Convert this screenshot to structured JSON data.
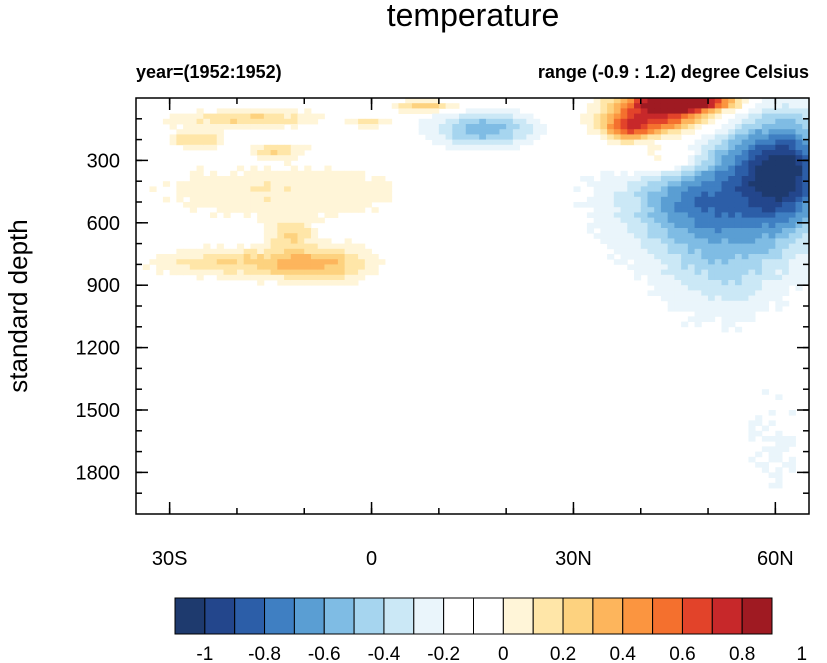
{
  "chart_data": {
    "type": "heatmap",
    "title": "temperature",
    "subtitle_left": "year=(1952:1952)",
    "subtitle_right": "range (-0.9 : 1.2) degree Celsius",
    "xlabel": "",
    "ylabel": "standard depth",
    "x_range": [
      -35,
      65
    ],
    "y_range": [
      0,
      2000
    ],
    "y_reversed": true,
    "x_ticks": [
      {
        "value": -30,
        "label": "30S"
      },
      {
        "value": 0,
        "label": "0"
      },
      {
        "value": 30,
        "label": "30N"
      },
      {
        "value": 60,
        "label": "60N"
      }
    ],
    "y_ticks": [
      {
        "value": 300,
        "label": "300"
      },
      {
        "value": 600,
        "label": "600"
      },
      {
        "value": 900,
        "label": "900"
      },
      {
        "value": 1200,
        "label": "1200"
      },
      {
        "value": 1500,
        "label": "1500"
      },
      {
        "value": 1800,
        "label": "1800"
      }
    ],
    "colorbar": {
      "colors": [
        "#1e3a6e",
        "#23468c",
        "#2c5ea8",
        "#3f7fc2",
        "#5a9ed3",
        "#7fbce4",
        "#a6d5ef",
        "#cbe8f6",
        "#eaf5fb",
        "#ffffff",
        "#ffffff",
        "#fff5d8",
        "#ffe6a8",
        "#fdd27f",
        "#fdb55c",
        "#fb9540",
        "#f4702e",
        "#e2432a",
        "#c7282a",
        "#9f1a22"
      ],
      "labels": [
        "-1",
        "-0.8",
        "-0.6",
        "-0.4",
        "-0.2",
        "0",
        "0.2",
        "0.4",
        "0.6",
        "0.8",
        "1"
      ]
    },
    "field_blobs": [
      {
        "lat": -18,
        "depth": 100,
        "rlat": 12,
        "rdepth": 45,
        "value": 0.35
      },
      {
        "lat": -26,
        "depth": 200,
        "rlat": 4,
        "rdepth": 40,
        "value": 0.35
      },
      {
        "lat": -14,
        "depth": 250,
        "rlat": 4,
        "rdepth": 30,
        "value": 0.35
      },
      {
        "lat": -20,
        "depth": 450,
        "rlat": 16,
        "rdepth": 150,
        "value": 0.15
      },
      {
        "lat": -5,
        "depth": 450,
        "rlat": 14,
        "rdepth": 150,
        "value": 0.12
      },
      {
        "lat": -22,
        "depth": 790,
        "rlat": 11,
        "rdepth": 70,
        "value": 0.3
      },
      {
        "lat": -8,
        "depth": 800,
        "rlat": 8,
        "rdepth": 90,
        "value": 0.45
      },
      {
        "lat": -12,
        "depth": 650,
        "rlat": 3,
        "rdepth": 70,
        "value": 0.3
      },
      {
        "lat": 8,
        "depth": 40,
        "rlat": 5,
        "rdepth": 30,
        "value": 0.4
      },
      {
        "lat": 0,
        "depth": 120,
        "rlat": 3,
        "rdepth": 30,
        "value": 0.3
      },
      {
        "lat": 17,
        "depth": 150,
        "rlat": 7,
        "rdepth": 80,
        "value": -0.5
      },
      {
        "lat": 43,
        "depth": 80,
        "rlat": 8,
        "rdepth": 90,
        "value": 0.9
      },
      {
        "lat": 47,
        "depth": 20,
        "rlat": 7,
        "rdepth": 40,
        "value": 1.15
      },
      {
        "lat": 38,
        "depth": 150,
        "rlat": 4,
        "rdepth": 60,
        "value": 0.55
      },
      {
        "lat": 44,
        "depth": 300,
        "rlat": 6,
        "rdepth": 80,
        "value": 0.35
      },
      {
        "lat": 57,
        "depth": 400,
        "rlat": 10,
        "rdepth": 300,
        "value": -0.65
      },
      {
        "lat": 62,
        "depth": 350,
        "rlat": 6,
        "rdepth": 250,
        "value": -0.6
      },
      {
        "lat": 46,
        "depth": 500,
        "rlat": 8,
        "rdepth": 200,
        "value": -0.45
      },
      {
        "lat": 52,
        "depth": 800,
        "rlat": 10,
        "rdepth": 250,
        "value": -0.3
      },
      {
        "lat": 35,
        "depth": 500,
        "rlat": 8,
        "rdepth": 300,
        "value": -0.1
      },
      {
        "lat": 30,
        "depth": 1400,
        "rlat": 30,
        "rdepth": 500,
        "value": -0.06
      },
      {
        "lat": 60,
        "depth": 1700,
        "rlat": 6,
        "rdepth": 400,
        "value": -0.1
      },
      {
        "lat": 5,
        "depth": 150,
        "rlat": 20,
        "rdepth": 150,
        "value": -0.05
      }
    ]
  }
}
